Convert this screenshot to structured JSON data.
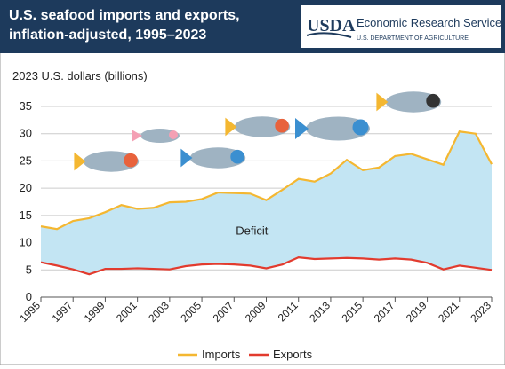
{
  "chart_data": {
    "type": "line",
    "title": [
      "U.S. seafood imports and exports,",
      "inflation-adjusted, 1995–2023"
    ],
    "source": {
      "logo": "USDA",
      "agency": "Economic Research Service",
      "department": "U.S. DEPARTMENT OF AGRICULTURE"
    },
    "y_label": "2023 U.S. dollars (billions)",
    "annotation": "Deficit",
    "x": [
      1995,
      1996,
      1997,
      1998,
      1999,
      2000,
      2001,
      2002,
      2003,
      2004,
      2005,
      2006,
      2007,
      2008,
      2009,
      2010,
      2011,
      2012,
      2013,
      2014,
      2015,
      2016,
      2017,
      2018,
      2019,
      2020,
      2021,
      2022,
      2023
    ],
    "xlim": [
      1995,
      2023
    ],
    "xticks": [
      1995,
      1997,
      1999,
      2001,
      2003,
      2005,
      2007,
      2009,
      2011,
      2013,
      2015,
      2017,
      2019,
      2021,
      2023
    ],
    "ylim": [
      0,
      35
    ],
    "yticks": [
      0,
      5,
      10,
      15,
      20,
      25,
      30,
      35
    ],
    "grid": true,
    "fill_between": "#c3e5f3",
    "series": [
      {
        "name": "Imports",
        "color": "#f4b731",
        "values": [
          13.0,
          12.5,
          14.0,
          14.5,
          15.6,
          16.9,
          16.2,
          16.4,
          17.4,
          17.5,
          18.0,
          19.2,
          19.1,
          19.0,
          17.8,
          19.7,
          21.7,
          21.2,
          22.7,
          25.2,
          23.3,
          23.8,
          25.9,
          26.3,
          25.3,
          24.3,
          30.4,
          30.0,
          24.4
        ]
      },
      {
        "name": "Exports",
        "color": "#e23b2e",
        "values": [
          6.4,
          5.8,
          5.1,
          4.2,
          5.2,
          5.2,
          5.3,
          5.2,
          5.1,
          5.7,
          6.0,
          6.1,
          6.0,
          5.8,
          5.3,
          6.0,
          7.3,
          7.0,
          7.1,
          7.2,
          7.1,
          6.9,
          7.1,
          6.9,
          6.3,
          5.1,
          5.8,
          5.4,
          5.0
        ]
      }
    ]
  }
}
